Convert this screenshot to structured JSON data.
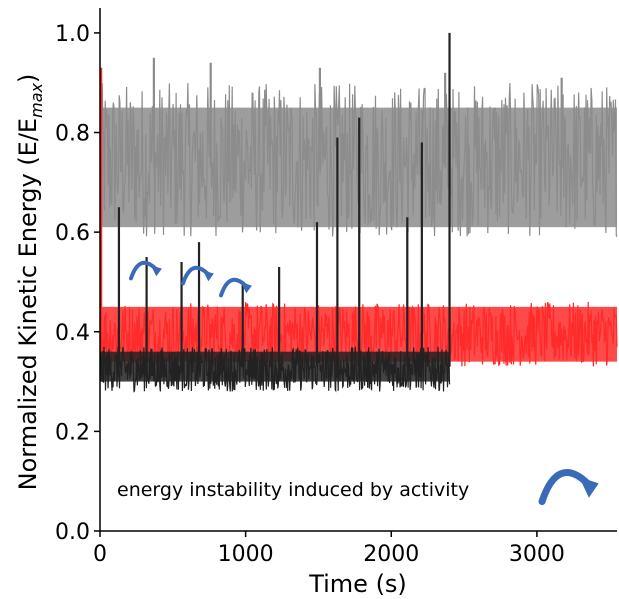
{
  "chart_data": {
    "type": "line",
    "xlabel": "Time (s)",
    "ylabel_main": "Normalized Kinetic Energy (E/E",
    "ylabel_sub": "max",
    "ylabel_close": ")",
    "xlim": [
      0,
      3550
    ],
    "ylim": [
      0,
      1.05
    ],
    "xticks": [
      0,
      1000,
      2000,
      3000
    ],
    "xtick_labels": [
      "0",
      "1000",
      "2000",
      "3000"
    ],
    "yticks": [
      0.0,
      0.2,
      0.4,
      0.6,
      0.8,
      1.0
    ],
    "ytick_labels": [
      "0.0",
      "0.2",
      "0.4",
      "0.6",
      "0.8",
      "1.0"
    ],
    "grid": false,
    "legend": "none",
    "annotation": "energy instability induced by activity",
    "series": [
      {
        "color": "#8c8c8c",
        "x_range": [
          0,
          3550
        ],
        "mean": 0.73,
        "band": [
          0.61,
          0.85
        ],
        "noise_range": [
          0.59,
          0.9
        ],
        "spikes": [
          {
            "x": 370,
            "y": 0.95
          },
          {
            "x": 760,
            "y": 0.94
          },
          {
            "x": 1510,
            "y": 0.93
          },
          {
            "x": 2370,
            "y": 0.92
          },
          {
            "x": 3170,
            "y": 0.91
          }
        ]
      },
      {
        "color": "#ff2a2a",
        "x_range": [
          0,
          3550
        ],
        "mean": 0.39,
        "band": [
          0.34,
          0.45
        ],
        "noise_range": [
          0.33,
          0.46
        ],
        "spikes": [
          {
            "x": 8,
            "y": 0.93
          }
        ]
      },
      {
        "color": "#222222",
        "x_range": [
          0,
          2400
        ],
        "mean": 0.33,
        "band": [
          0.3,
          0.36
        ],
        "noise_range": [
          0.28,
          0.37
        ],
        "spikes": [
          {
            "x": 130,
            "y": 0.65
          },
          {
            "x": 320,
            "y": 0.55
          },
          {
            "x": 560,
            "y": 0.54
          },
          {
            "x": 680,
            "y": 0.58
          },
          {
            "x": 980,
            "y": 0.5
          },
          {
            "x": 1230,
            "y": 0.53
          },
          {
            "x": 1490,
            "y": 0.62
          },
          {
            "x": 1630,
            "y": 0.79
          },
          {
            "x": 1780,
            "y": 0.83
          },
          {
            "x": 2110,
            "y": 0.63
          },
          {
            "x": 2210,
            "y": 0.78
          },
          {
            "x": 2400,
            "y": 1.0
          }
        ]
      }
    ]
  }
}
